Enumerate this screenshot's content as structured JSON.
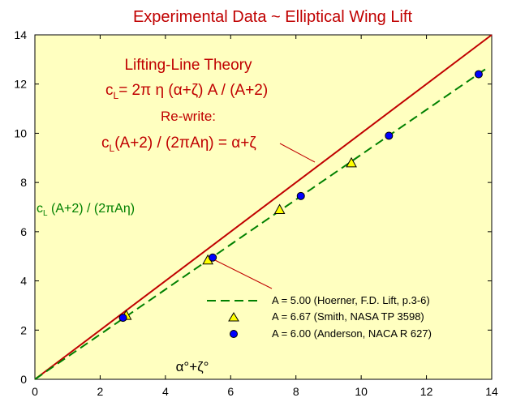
{
  "chart_data": {
    "type": "scatter",
    "title": "Experimental Data ~ Elliptical Wing Lift",
    "xlabel": "α°+ζ°",
    "ylabel": "",
    "xlim": [
      0,
      14
    ],
    "ylim": [
      0,
      14
    ],
    "x_ticks": [
      "0",
      "2",
      "4",
      "6",
      "8",
      "10",
      "12",
      "14"
    ],
    "y_ticks": [
      "0",
      "2",
      "4",
      "6",
      "8",
      "10",
      "12",
      "14"
    ],
    "grid": false,
    "legend_position": "bottom-right",
    "colors": {
      "plot_background": "#ffffc0",
      "theory_line": "#c00000",
      "fit_line": "#008000",
      "triangle_fill": "#ffff00",
      "circle_fill": "#0000ff",
      "text_red": "#c00000",
      "text_green": "#008000"
    },
    "annotations": {
      "theory_title": "Lifting-Line Theory",
      "theory_formula": {
        "c": "c",
        "sub": "L",
        "rest": "= 2π η (α+ζ) A / (A+2)"
      },
      "rewrite_label": "Re-write:",
      "rewrite_formula": {
        "c": "c",
        "sub": "L",
        "rest": "(A+2) / (2πAη) =  α+ζ"
      },
      "green_label": {
        "c": "c",
        "sub": "L",
        "rest": " (A+2) / (2πAη)"
      }
    },
    "series": [
      {
        "name": "Lifting-Line Theory",
        "kind": "line",
        "x": [
          0,
          14
        ],
        "y": [
          0,
          14
        ]
      },
      {
        "name": "A = 5.00 (Hoerner, F.D. Lift, p.3-6)",
        "kind": "dashed-line",
        "x": [
          0,
          13.8
        ],
        "y": [
          0,
          12.6
        ]
      },
      {
        "name": "A = 6.67 (Smith, NASA TP 3598)",
        "kind": "triangle",
        "x": [
          2.8,
          5.3,
          7.5,
          9.7
        ],
        "y": [
          2.6,
          4.85,
          6.9,
          8.8
        ]
      },
      {
        "name": "A = 6.00 (Anderson, NACA R 627)",
        "kind": "circle",
        "x": [
          2.7,
          5.45,
          8.15,
          10.85,
          13.6
        ],
        "y": [
          2.5,
          4.95,
          7.45,
          9.9,
          12.4
        ]
      }
    ]
  }
}
